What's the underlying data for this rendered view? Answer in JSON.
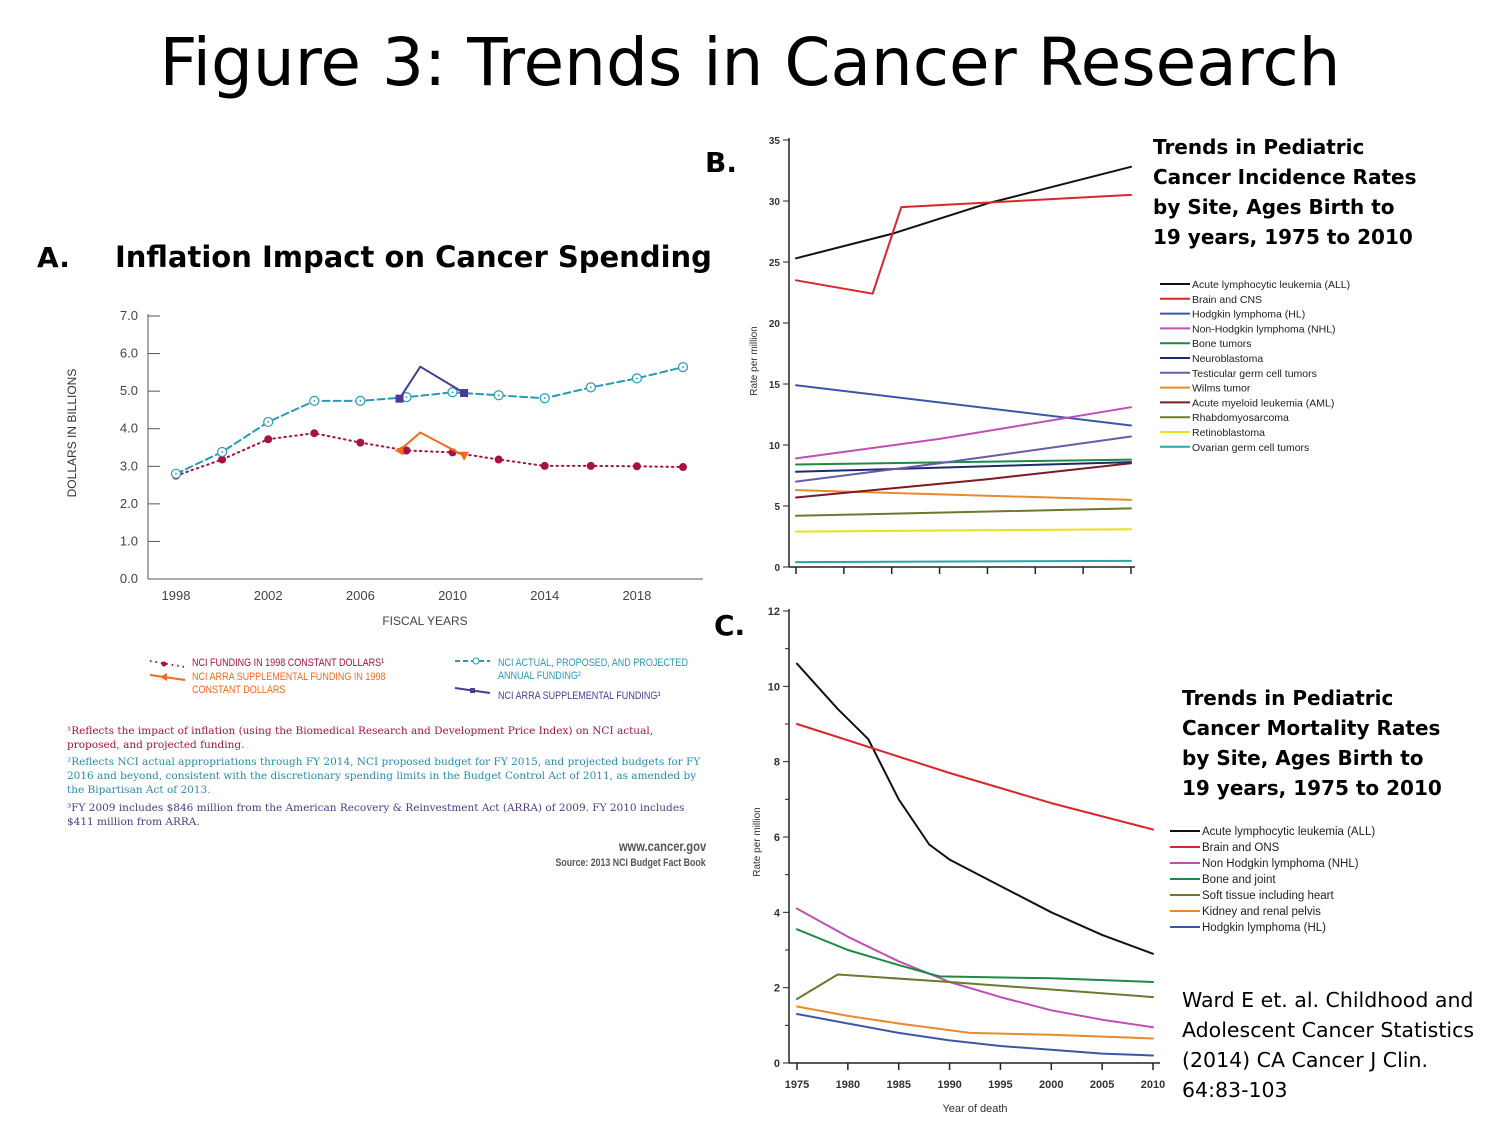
{
  "title": "Figure 3: Trends in Cancer Research",
  "panels": {
    "a_letter": "A.",
    "a_title": "Inflation Impact on Cancer Spending",
    "b_letter": "B.",
    "b_title_lines": [
      "Trends in Pediatric",
      "Cancer Incidence Rates",
      "by Site, Ages Birth to",
      "19 years, 1975 to 2010"
    ],
    "c_letter": "C.",
    "c_title_lines": [
      "Trends in Pediatric",
      "Cancer Mortality Rates",
      "by Site, Ages Birth to",
      "19 years, 1975 to 2010"
    ]
  },
  "footnotes": {
    "f1": "¹Reflects the impact of inflation (using the Biomedical Research and Development Price Index) on NCI actual, proposed, and projected funding.",
    "f2": "²Reflects NCI actual appropriations through FY 2014, NCI proposed budget for FY 2015, and projected budgets for FY 2016 and beyond, consistent with the discretionary spending limits in the Budget Control Act of 2011, as amended by the Bipartisan Act of 2013.",
    "f3": "³FY 2009 includes $846 million from the American Recovery & Reinvestment Act (ARRA) of 2009. FY 2010 includes $411 million from ARRA.",
    "website": "www.cancer.gov",
    "source": "Source: 2013 NCI Budget Fact Book"
  },
  "citation_lines": [
    "Ward E et. al. Childhood and",
    "Adolescent Cancer Statistics",
    "(2014) CA Cancer J Clin.",
    "64:83-103"
  ],
  "chart_data": [
    {
      "id": "A",
      "type": "line",
      "title": "Inflation Impact on Cancer Spending",
      "xlabel": "FISCAL YEARS",
      "ylabel": "DOLLARS IN BILLIONS",
      "xlim": [
        1998,
        2020
      ],
      "ylim": [
        0,
        7
      ],
      "xticks": [
        "1998",
        "2002",
        "2006",
        "2010",
        "2014",
        "2018"
      ],
      "yticks": [
        "0.0",
        "1.0",
        "2.0",
        "3.0",
        "4.0",
        "5.0",
        "6.0",
        "7.0"
      ],
      "grid": false,
      "series": [
        {
          "name": "NCI FUNDING IN 1998 CONSTANT DOLLARS¹",
          "color": "#a8123f",
          "style": "dotted",
          "marker": "circle",
          "x": [
            1998,
            2000,
            2002,
            2004,
            2006,
            2008,
            2010,
            2012,
            2014,
            2016,
            2018,
            2020
          ],
          "y": [
            2.75,
            3.18,
            3.72,
            3.88,
            3.63,
            3.42,
            3.37,
            3.18,
            3.01,
            3.01,
            3.0,
            2.98
          ]
        },
        {
          "name": "NCI ARRA SUPPLEMENTAL FUNDING IN 1998 CONSTANT DOLLARS",
          "color": "#f26a1b",
          "style": "solid",
          "marker": "triangle",
          "x": [
            2007.7,
            2008.6,
            2010.5
          ],
          "y": [
            3.42,
            3.9,
            3.28
          ]
        },
        {
          "name": "NCI ACTUAL, PROPOSED, AND PROJECTED ANNUAL FUNDING²",
          "color": "#2a9bb5",
          "style": "dashed",
          "marker": "open-circle",
          "x": [
            1998,
            2000,
            2002,
            2004,
            2006,
            2008,
            2010,
            2012,
            2014,
            2016,
            2018,
            2020
          ],
          "y": [
            2.8,
            3.38,
            4.18,
            4.74,
            4.74,
            4.84,
            4.97,
            4.89,
            4.81,
            5.1,
            5.34,
            5.64
          ]
        },
        {
          "name": "NCI ARRA SUPPLEMENTAL FUNDING³",
          "color": "#4b3a96",
          "style": "solid",
          "marker": "square",
          "x": [
            2007.7,
            2008.6,
            2010.5
          ],
          "y": [
            4.8,
            5.65,
            4.95
          ]
        }
      ],
      "legend_position": "bottom"
    },
    {
      "id": "B",
      "type": "line",
      "ylabel": "Rate per million",
      "xlim": [
        1975,
        2010
      ],
      "ylim": [
        0,
        35
      ],
      "yticks": [
        "0",
        "5",
        "10",
        "15",
        "20",
        "25",
        "30",
        "35"
      ],
      "grid": false,
      "legend_position": "right",
      "series": [
        {
          "name": "Acute lymphocytic leukemia (ALL)",
          "color": "#111111",
          "x": [
            1975,
            1985,
            1995,
            2010
          ],
          "y": [
            25.3,
            27.3,
            29.8,
            32.8
          ]
        },
        {
          "name": "Brain and CNS",
          "color": "#d7262c",
          "x": [
            1975,
            1983,
            1986,
            2010
          ],
          "y": [
            23.5,
            22.4,
            29.5,
            30.5
          ]
        },
        {
          "name": "Hodgkin lymphoma (HL)",
          "color": "#3b57a8",
          "x": [
            1975,
            2010
          ],
          "y": [
            14.9,
            11.6
          ]
        },
        {
          "name": "Non-Hodgkin lymphoma (NHL)",
          "color": "#c04fb5",
          "x": [
            1975,
            1990,
            2010
          ],
          "y": [
            8.9,
            10.5,
            13.1
          ]
        },
        {
          "name": "Bone tumors",
          "color": "#1f8a47",
          "x": [
            1975,
            2010
          ],
          "y": [
            8.4,
            8.8
          ]
        },
        {
          "name": "Neuroblastoma",
          "color": "#1e2a6e",
          "x": [
            1975,
            2010
          ],
          "y": [
            7.8,
            8.6
          ]
        },
        {
          "name": "Testicular germ cell tumors",
          "color": "#6a5aa8",
          "x": [
            1975,
            1990,
            2010
          ],
          "y": [
            7.0,
            8.5,
            10.7
          ]
        },
        {
          "name": "Wilms tumor",
          "color": "#e88a2e",
          "x": [
            1975,
            2010
          ],
          "y": [
            6.3,
            5.5
          ]
        },
        {
          "name": "Acute myeloid leukemia (AML)",
          "color": "#7a1a22",
          "x": [
            1975,
            1995,
            2010
          ],
          "y": [
            5.7,
            7.2,
            8.5
          ]
        },
        {
          "name": "Rhabdomyosarcoma",
          "color": "#6b7a2e",
          "x": [
            1975,
            2010
          ],
          "y": [
            4.2,
            4.8
          ]
        },
        {
          "name": "Retinoblastoma",
          "color": "#e8e21e",
          "x": [
            1975,
            2010
          ],
          "y": [
            2.9,
            3.1
          ]
        },
        {
          "name": "Ovarian germ cell tumors",
          "color": "#2aa6a6",
          "x": [
            1975,
            2010
          ],
          "y": [
            0.4,
            0.5
          ]
        }
      ]
    },
    {
      "id": "C",
      "type": "line",
      "xlabel": "Year of death",
      "ylabel": "Rate per million",
      "xlim": [
        1975,
        2010
      ],
      "ylim": [
        0,
        12
      ],
      "xticks": [
        "1975",
        "1980",
        "1985",
        "1990",
        "1995",
        "2000",
        "2005",
        "2010"
      ],
      "yticks": [
        "0",
        "2",
        "4",
        "6",
        "8",
        "10",
        "12"
      ],
      "grid": false,
      "legend_position": "right",
      "series": [
        {
          "name": "Acute lymphocytic leukemia (ALL)",
          "color": "#111111",
          "x": [
            1975,
            1979,
            1982,
            1985,
            1988,
            1990,
            1995,
            2000,
            2005,
            2010
          ],
          "y": [
            10.6,
            9.4,
            8.6,
            7.0,
            5.8,
            5.4,
            4.7,
            4.0,
            3.4,
            2.9
          ]
        },
        {
          "name": "Brain and ONS",
          "color": "#d7262c",
          "x": [
            1975,
            1990,
            2000,
            2010
          ],
          "y": [
            9.0,
            7.7,
            6.9,
            6.2
          ]
        },
        {
          "name": "Non Hodgkin lymphoma (NHL)",
          "color": "#c04fb5",
          "x": [
            1975,
            1980,
            1985,
            1990,
            1995,
            2000,
            2005,
            2010
          ],
          "y": [
            4.1,
            3.35,
            2.7,
            2.15,
            1.75,
            1.4,
            1.15,
            0.95
          ]
        },
        {
          "name": "Bone and joint",
          "color": "#1f8a47",
          "x": [
            1975,
            1980,
            1985,
            1989,
            2000,
            2010
          ],
          "y": [
            3.55,
            3.0,
            2.6,
            2.3,
            2.25,
            2.15
          ]
        },
        {
          "name": "Soft tissue including heart",
          "color": "#6b7a2e",
          "x": [
            1975,
            1979,
            1990,
            2000,
            2010
          ],
          "y": [
            1.7,
            2.35,
            2.15,
            1.95,
            1.75
          ]
        },
        {
          "name": "Kidney and renal pelvis",
          "color": "#e88a2e",
          "x": [
            1975,
            1980,
            1985,
            1992,
            2000,
            2010
          ],
          "y": [
            1.5,
            1.25,
            1.05,
            0.8,
            0.75,
            0.65
          ]
        },
        {
          "name": "Hodgkin lymphoma (HL)",
          "color": "#3b57a8",
          "x": [
            1975,
            1980,
            1985,
            1990,
            1995,
            2000,
            2005,
            2010
          ],
          "y": [
            1.3,
            1.05,
            0.8,
            0.6,
            0.45,
            0.35,
            0.25,
            0.2
          ]
        }
      ]
    }
  ]
}
